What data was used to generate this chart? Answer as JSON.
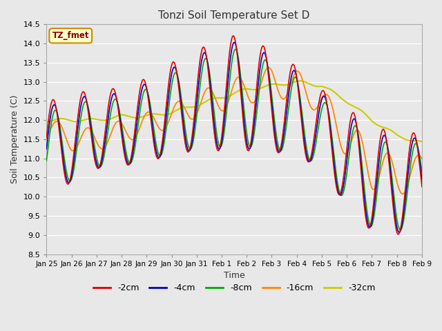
{
  "title": "Tonzi Soil Temperature Set D",
  "xlabel": "Time",
  "ylabel": "Soil Temperature (C)",
  "ylim": [
    8.5,
    14.5
  ],
  "annotation_text": "TZ_fmet",
  "annotation_color": "#880000",
  "annotation_bg": "#ffffcc",
  "annotation_edge": "#cc8800",
  "series": {
    "-2cm": {
      "color": "#dd0000"
    },
    "-4cm": {
      "color": "#0000cc"
    },
    "-8cm": {
      "color": "#00aa00"
    },
    "-16cm": {
      "color": "#ff8800"
    },
    "-32cm": {
      "color": "#cccc00"
    }
  },
  "xtick_labels": [
    "Jan 25",
    "Jan 26",
    "Jan 27",
    "Jan 28",
    "Jan 29",
    "Jan 30",
    "Jan 31",
    "Feb 1",
    "Feb 2",
    "Feb 3",
    "Feb 4",
    "Feb 5",
    "Feb 6",
    "Feb 7",
    "Feb 8",
    "Feb 9"
  ],
  "yticks": [
    8.5,
    9.0,
    9.5,
    10.0,
    10.5,
    11.0,
    11.5,
    12.0,
    12.5,
    13.0,
    13.5,
    14.0,
    14.5
  ],
  "figsize": [
    6.4,
    4.8
  ],
  "dpi": 100,
  "background_color": "#e8e8e8"
}
